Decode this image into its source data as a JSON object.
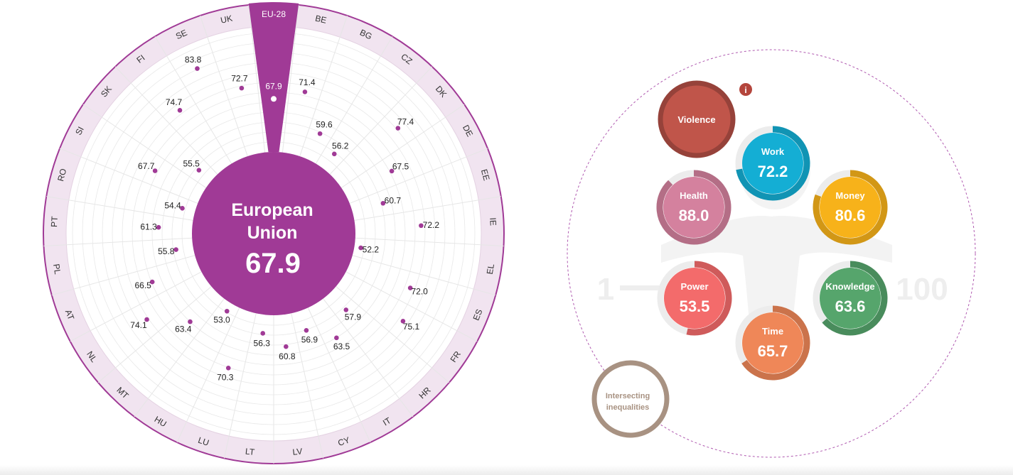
{
  "colors": {
    "eu_purple": "#a03a96",
    "ring_light": "#f1e4f0",
    "grid": "#e8e8e8",
    "violence": "#c0554a",
    "work": "#14aed4",
    "money": "#f7b21a",
    "health": "#d4819e",
    "knowledge": "#56a56c",
    "power": "#f36b6b",
    "time": "#ef8758",
    "intersecting": "#a89282"
  },
  "chart_data": [
    {
      "type": "radial-dot",
      "title": "European Union",
      "center_label": "European Union",
      "center_value": "67.9",
      "highlight_category": "EU-28",
      "categories": [
        "EU-28",
        "BE",
        "BG",
        "CZ",
        "DK",
        "DE",
        "EE",
        "IE",
        "EL",
        "ES",
        "FR",
        "HR",
        "IT",
        "CY",
        "LV",
        "LT",
        "LU",
        "HU",
        "MT",
        "NL",
        "AT",
        "PL",
        "PT",
        "RO",
        "SI",
        "SK",
        "FI",
        "SE",
        "UK"
      ],
      "values": [
        67.9,
        71.4,
        59.6,
        56.2,
        77.4,
        67.5,
        60.7,
        72.2,
        52.2,
        72.0,
        75.1,
        57.9,
        63.5,
        56.9,
        60.8,
        56.3,
        70.3,
        53.0,
        63.4,
        74.1,
        66.5,
        55.8,
        61.3,
        54.4,
        67.7,
        55.5,
        74.7,
        83.8,
        72.7
      ],
      "value_labels": [
        "67.9",
        "71.4",
        "59.6",
        "56.2",
        "77.4",
        "67.5",
        "60.7",
        "72.2",
        "52.2",
        "72.0",
        "75.1",
        "57.9",
        "63.5",
        "56.9",
        "60.8",
        "56.3",
        "70.3",
        "53.0",
        "63.4",
        "74.1",
        "66.5",
        "55.8",
        "61.3",
        "54.4",
        "67.7",
        "55.5",
        "74.7",
        "83.8",
        "72.7"
      ]
    },
    {
      "type": "domain-bubbles",
      "scale_min": "1",
      "scale_max": "100",
      "domains": [
        {
          "key": "violence",
          "label": "Violence",
          "value": null,
          "display": ""
        },
        {
          "key": "work",
          "label": "Work",
          "value": 72.2,
          "display": "72.2"
        },
        {
          "key": "money",
          "label": "Money",
          "value": 80.6,
          "display": "80.6"
        },
        {
          "key": "health",
          "label": "Health",
          "value": 88.0,
          "display": "88.0"
        },
        {
          "key": "knowledge",
          "label": "Knowledge",
          "value": 63.6,
          "display": "63.6"
        },
        {
          "key": "power",
          "label": "Power",
          "value": 53.5,
          "display": "53.5"
        },
        {
          "key": "time",
          "label": "Time",
          "value": 65.7,
          "display": "65.7"
        }
      ],
      "intersecting": {
        "line1": "Intersecting",
        "line2": "inequalities"
      },
      "info_label": "i"
    }
  ]
}
